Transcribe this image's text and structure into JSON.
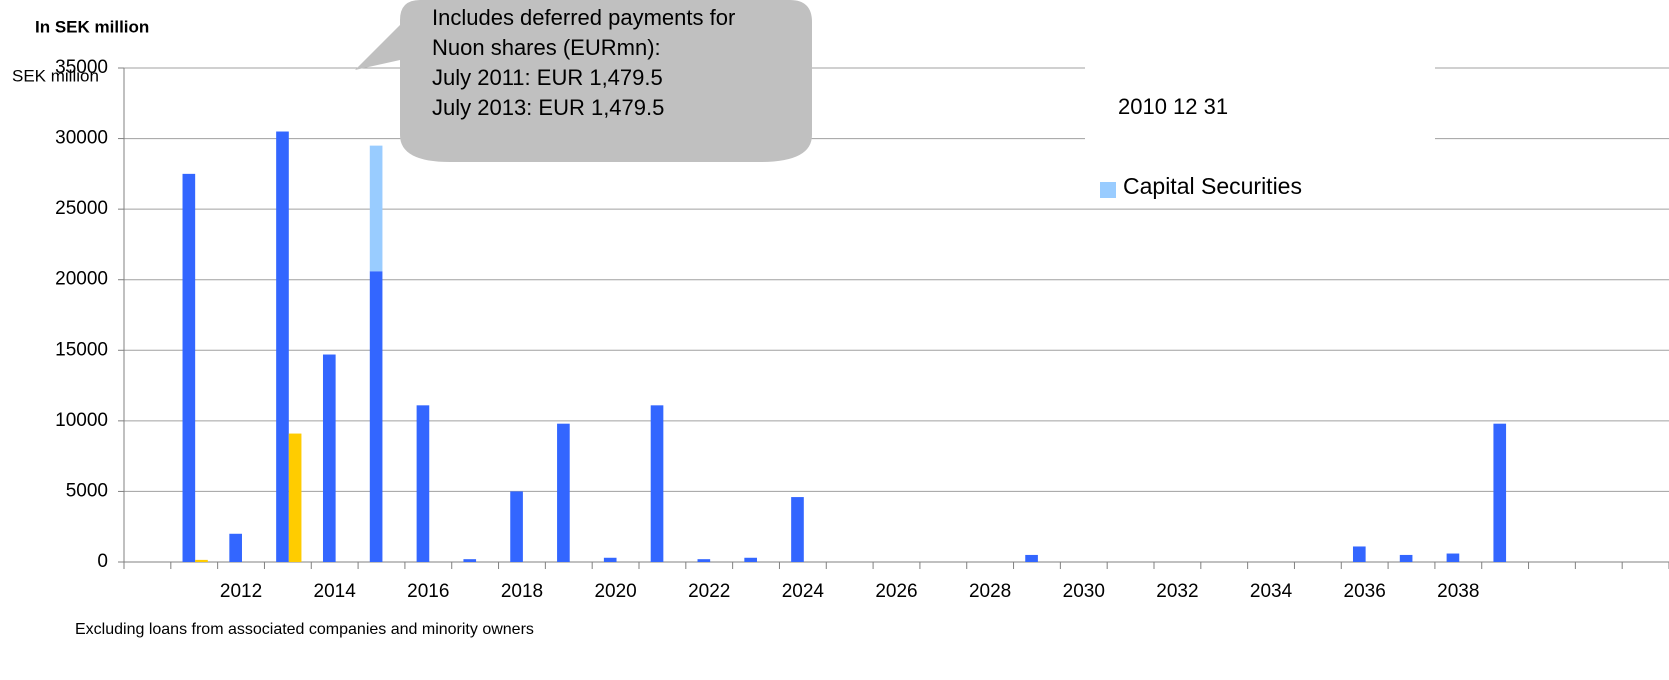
{
  "chart_data": {
    "type": "bar",
    "title": "In SEK million",
    "y_label": "SEK million",
    "footnote": "Excluding loans from associated companies and minority owners",
    "annotation": [
      "Includes deferred payments for",
      "Nuon shares (EURmn):",
      "July 2011: EUR 1,479.5",
      "July 2013: EUR 1,479.5"
    ],
    "legend_title": "2010 12 31",
    "categories": [
      null,
      null,
      "2012",
      null,
      "2014",
      null,
      "2016",
      null,
      "2018",
      null,
      "2020",
      null,
      "2022",
      null,
      "2024",
      null,
      "2026",
      null,
      "2028",
      null,
      "2030",
      null,
      "2032",
      null,
      "2034",
      null,
      "2036",
      null,
      "2038",
      null,
      null,
      null,
      null
    ],
    "series": [
      {
        "color": "#3366ff",
        "values": [
          null,
          27500,
          2000,
          30500,
          14700,
          20600,
          11100,
          200,
          5000,
          9800,
          300,
          11100,
          200,
          300,
          4600,
          0,
          0,
          0,
          0,
          500,
          0,
          0,
          0,
          0,
          0,
          0,
          1100,
          500,
          600,
          9800,
          null,
          null,
          null
        ]
      },
      {
        "color": "#ffcc00",
        "values": [
          null,
          150,
          0,
          9100,
          0,
          0,
          0,
          0,
          0,
          0,
          0,
          0,
          0,
          0,
          0,
          0,
          0,
          0,
          0,
          0,
          0,
          0,
          0,
          0,
          0,
          0,
          0,
          0,
          0,
          0,
          null,
          null,
          null
        ]
      },
      {
        "name": "Capital Securities",
        "color": "#99ccff",
        "values": [
          null,
          0,
          0,
          0,
          0,
          8900,
          0,
          0,
          0,
          0,
          0,
          0,
          0,
          0,
          0,
          0,
          0,
          0,
          0,
          0,
          0,
          0,
          0,
          0,
          0,
          0,
          0,
          0,
          0,
          0,
          null,
          null,
          null
        ]
      }
    ],
    "ylim": [
      0,
      35000
    ],
    "yticks": [
      0,
      5000,
      10000,
      15000,
      20000,
      25000,
      30000,
      35000
    ],
    "grid": true
  }
}
